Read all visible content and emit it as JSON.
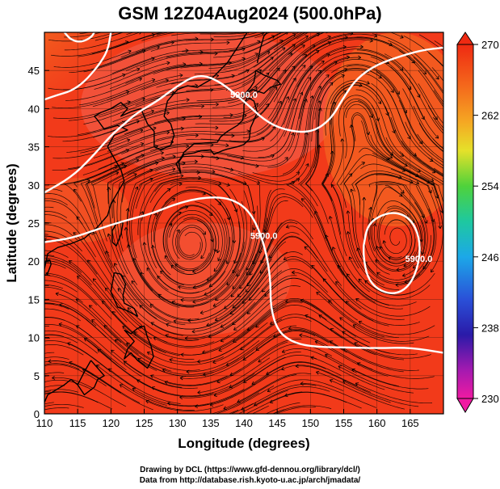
{
  "title": "GSM 12Z04Aug2024 (500.0hPa)",
  "credits": {
    "line1": "Drawing by DCL (https://www.gfd-dennou.org/library/dcl/)",
    "line2": "Data from http://database.rish.kyoto-u.ac.jp/arch/jmadata/"
  },
  "colors": {
    "background_field": "#f23a1a",
    "warm_field": "#f25a3a",
    "cool_corner": "#f5b820",
    "contour": "#ffffff",
    "streamline": "#000000",
    "coastline": "#000000"
  },
  "chart_data": {
    "type": "heatmap",
    "title": "GSM 12Z04Aug2024 (500.0hPa)",
    "xlabel": "Longitude (degrees)",
    "ylabel": "Latitude  (degrees)",
    "xlim": [
      110,
      170
    ],
    "ylim": [
      0,
      50
    ],
    "x_ticks": [
      "110",
      "115",
      "120",
      "125",
      "130",
      "135",
      "140",
      "145",
      "150",
      "155",
      "160",
      "165"
    ],
    "y_ticks": [
      "0",
      "5",
      "10",
      "15",
      "20",
      "25",
      "30",
      "35",
      "40",
      "45"
    ],
    "colorbar": {
      "ticks": [
        "270",
        "262",
        "254",
        "246",
        "238",
        "230"
      ],
      "range": [
        230,
        270
      ]
    },
    "contours": [
      {
        "label": "5900.0",
        "lon_lat": [
          [
            110,
            22.5
          ],
          [
            114,
            23
          ],
          [
            118,
            24.2
          ],
          [
            122,
            25.3
          ],
          [
            126,
            26.2
          ],
          [
            130,
            27.6
          ],
          [
            134,
            28.4
          ],
          [
            138,
            28.3
          ],
          [
            141,
            26.5
          ],
          [
            143,
            22.5
          ],
          [
            144,
            18
          ],
          [
            144,
            14
          ],
          [
            145,
            11
          ],
          [
            147,
            9.5
          ],
          [
            150,
            8.8
          ],
          [
            155,
            8.7
          ],
          [
            160,
            8.6
          ],
          [
            165,
            8.7
          ],
          [
            170,
            8.0
          ]
        ]
      },
      {
        "label": "5900.0",
        "lon_lat": [
          [
            110,
            29
          ],
          [
            114,
            31
          ],
          [
            117,
            33.5
          ],
          [
            120,
            36.5
          ],
          [
            122,
            38
          ],
          [
            124,
            39.5
          ],
          [
            127,
            41
          ],
          [
            130,
            43
          ],
          [
            133,
            44.5
          ],
          [
            136,
            43.8
          ],
          [
            140,
            41
          ],
          [
            143,
            38.5
          ],
          [
            146,
            37.2
          ],
          [
            150,
            36.8
          ],
          [
            153,
            38.5
          ],
          [
            155,
            41.5
          ],
          [
            157,
            44
          ],
          [
            160,
            45.8
          ],
          [
            164,
            47
          ],
          [
            167,
            47.7
          ],
          [
            170,
            48
          ]
        ]
      },
      {
        "label": "5900.0",
        "lon_lat": [
          [
            158,
            22
          ],
          [
            158.5,
            24.5
          ],
          [
            160,
            25.8
          ],
          [
            162.5,
            26.5
          ],
          [
            165,
            25.7
          ],
          [
            166.5,
            23
          ],
          [
            166.3,
            19.5
          ],
          [
            164.8,
            16.6
          ],
          [
            162.5,
            15.6
          ],
          [
            160,
            16.3
          ],
          [
            158.5,
            18
          ],
          [
            158,
            20.5
          ],
          [
            158,
            22
          ]
        ]
      },
      {
        "label": "",
        "lon_lat": [
          [
            110,
            41.2
          ],
          [
            112,
            41.8
          ],
          [
            114,
            42.3
          ],
          [
            116,
            43.5
          ],
          [
            118,
            45.5
          ],
          [
            119.5,
            47.5
          ],
          [
            120,
            50
          ]
        ]
      },
      {
        "label": "",
        "lon_lat": [
          [
            113,
            50
          ],
          [
            114,
            49
          ],
          [
            115.5,
            48.7
          ],
          [
            117,
            49.3
          ],
          [
            117.5,
            50
          ]
        ]
      }
    ],
    "highs": [
      {
        "lon": 132,
        "lat": 20
      },
      {
        "lon": 162.5,
        "lat": 20
      },
      {
        "lon": 156,
        "lat": 42
      }
    ]
  }
}
